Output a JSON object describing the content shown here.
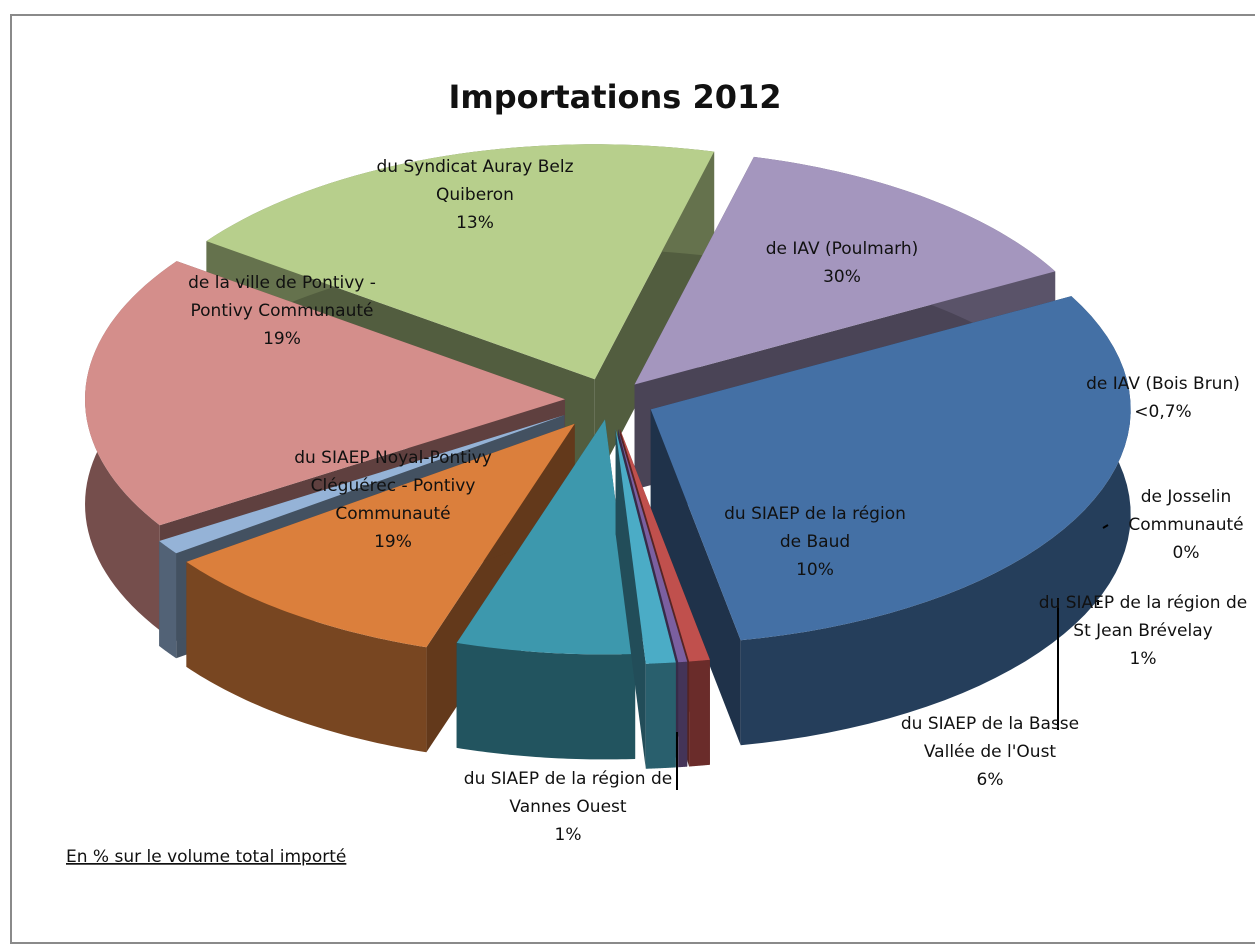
{
  "chart_data": {
    "type": "pie",
    "title": "Importations 2012",
    "note": "En % sur le volume total importé",
    "slices": [
      {
        "label": [
          "de IAV (Poulmarh)"
        ],
        "value_label": "30%",
        "value": 30,
        "color": "#4470a5"
      },
      {
        "label": [
          "de IAV (Bois Brun)"
        ],
        "value_label": "<0,7%",
        "value": 0.7,
        "color": "#c0504d"
      },
      {
        "label": [
          "de Josselin",
          "Communauté"
        ],
        "value_label": "0%",
        "value": 0.3,
        "color": "#7b5fa0"
      },
      {
        "label": [
          "du SIAEP de la région de",
          "St Jean Brévelay"
        ],
        "value_label": "1%",
        "value": 1,
        "color": "#4bacc6"
      },
      {
        "label": [
          "du SIAEP de la Basse",
          "Vallée de l'Oust"
        ],
        "value_label": "6%",
        "value": 6,
        "color": "#3d98ad"
      },
      {
        "label": [
          "du SIAEP de la région",
          "de Baud"
        ],
        "value_label": "10%",
        "value": 10,
        "color": "#db7f3c"
      },
      {
        "label": [
          "du SIAEP de la région de",
          "Vannes Ouest"
        ],
        "value_label": "1%",
        "value": 1,
        "color": "#95b3d7"
      },
      {
        "label": [
          "du SIAEP Noyal-Pontivy",
          "Cléguérec - Pontivy",
          "Communauté"
        ],
        "value_label": "19%",
        "value": 19,
        "color": "#d48e8b"
      },
      {
        "label": [
          "de la ville de Pontivy -",
          "Pontivy Communauté"
        ],
        "value_label": "19%",
        "value": 19,
        "color": "#b7cf8c"
      },
      {
        "label": [
          "du Syndicat Auray Belz",
          "Quiberon"
        ],
        "value_label": "13%",
        "value": 13,
        "color": "#a496be"
      }
    ]
  }
}
